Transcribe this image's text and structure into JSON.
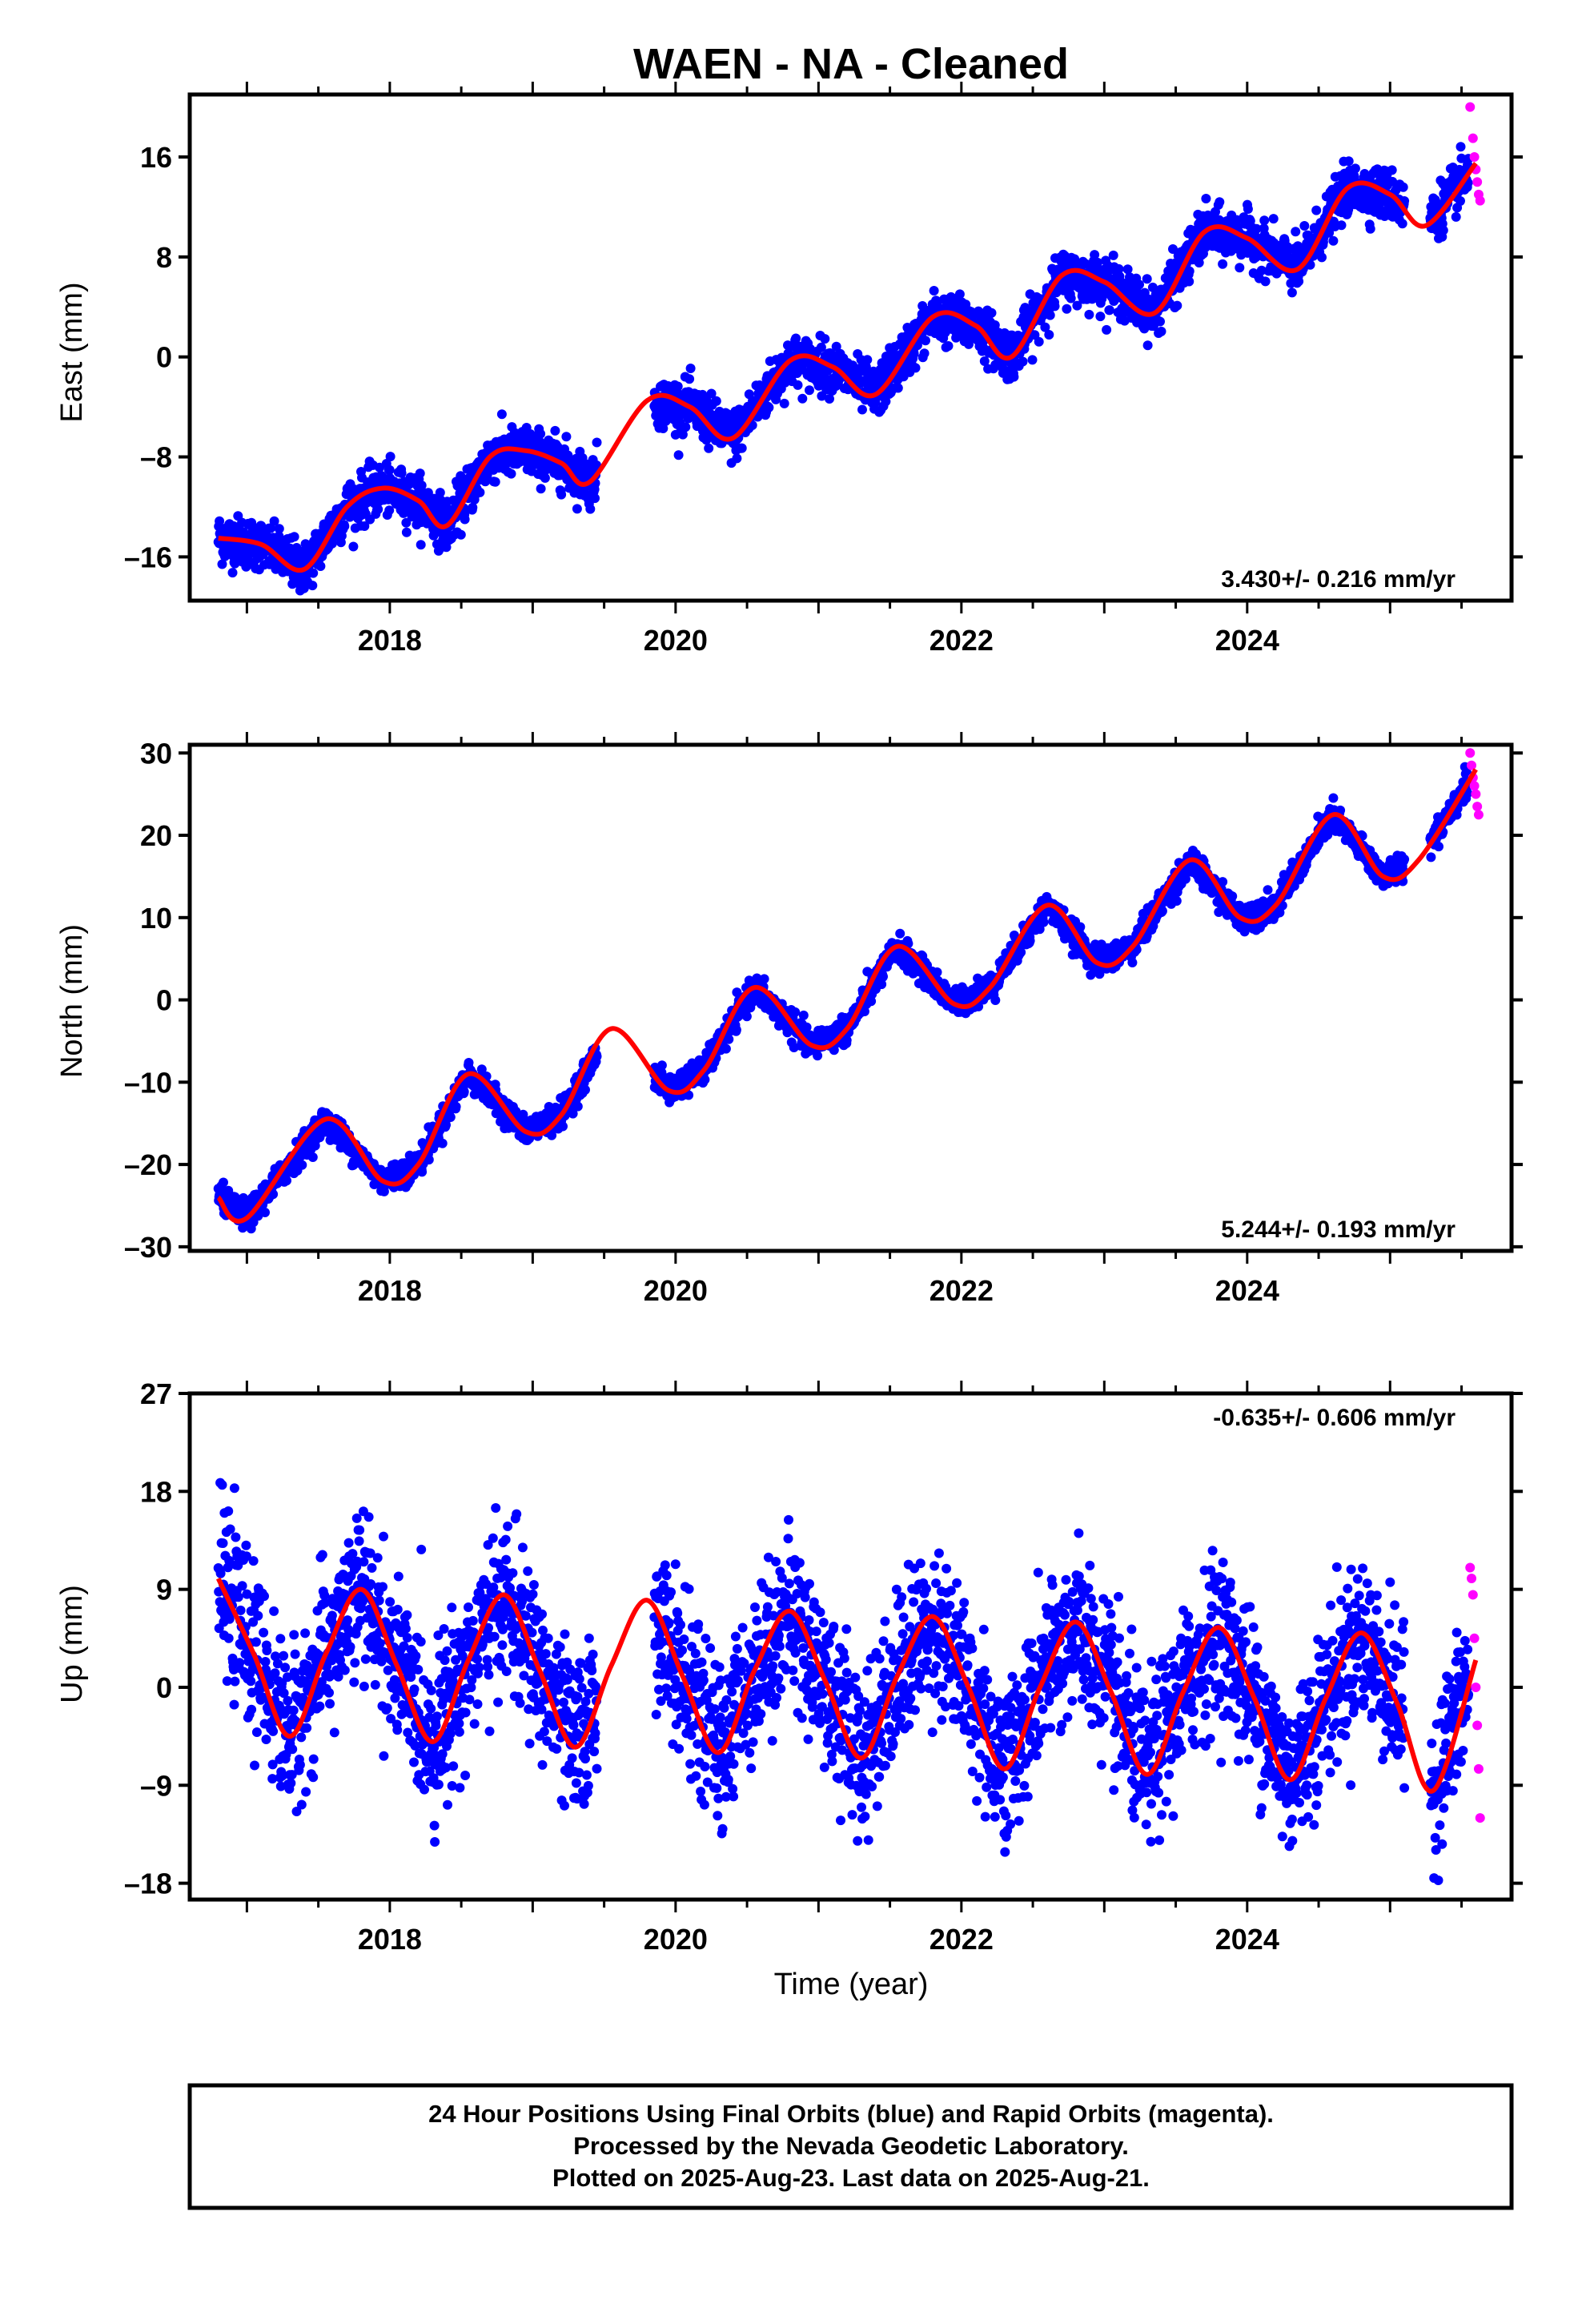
{
  "title": "WAEN  - NA - Cleaned",
  "xlabel": "Time (year)",
  "footer": {
    "line1": "24 Hour Positions Using Final Orbits (blue) and Rapid Orbits (magenta).",
    "line2": "Processed by the Nevada Geodetic Laboratory.",
    "line3": "Plotted on 2025-Aug-23. Last data on 2025-Aug-21."
  },
  "colors": {
    "final": "#0000ff",
    "rapid": "#ff00ff",
    "model": "#ff0000",
    "frame": "#000000"
  },
  "chart_data": [
    {
      "type": "scatter",
      "ylabel": "East (mm)",
      "rate_label": "3.430+/- 0.216 mm/yr",
      "rate_position": "bottom-right",
      "xlim": [
        2016.6,
        2025.85
      ],
      "ylim": [
        -19.5,
        21
      ],
      "yticks": [
        "16",
        "8",
        "0",
        "–8",
        "–16"
      ],
      "ytick_values": [
        16,
        8,
        0,
        -8,
        -16
      ],
      "xticks": [
        "2018",
        "2020",
        "2022",
        "2024"
      ],
      "xtick_values": [
        2018,
        2020,
        2022,
        2024
      ],
      "series": [
        {
          "kind": "final",
          "x_start": 2016.8,
          "x_end": 2025.55,
          "trend_at_x_start": -15.3,
          "slope": 3.43,
          "annual_amp": 2.2,
          "annual_phase": 2.6,
          "scatter": 1.1
        },
        {
          "kind": "rapid",
          "x": [
            2025.56,
            2025.58,
            2025.59,
            2025.6,
            2025.61,
            2025.62,
            2025.63
          ],
          "y": [
            20.0,
            17.5,
            16.0,
            15.0,
            14.0,
            13.0,
            12.5
          ]
        },
        {
          "kind": "model",
          "x": [
            2016.8,
            2017.1,
            2017.4,
            2017.7,
            2017.95,
            2018.2,
            2018.4,
            2018.7,
            2018.95,
            2019.2,
            2019.4,
            2019.8,
            2020.1,
            2020.4,
            2020.8,
            2021.1,
            2021.4,
            2021.8,
            2022.1,
            2022.35,
            2022.7,
            2023.0,
            2023.35,
            2023.7,
            2024.0,
            2024.35,
            2024.7,
            2025.0,
            2025.25,
            2025.6
          ],
          "y": [
            -14.5,
            -15.0,
            -17.0,
            -12.0,
            -10.5,
            -11.5,
            -13.5,
            -8.0,
            -7.5,
            -8.5,
            -10.0,
            -3.5,
            -4.0,
            -6.5,
            -0.3,
            -0.8,
            -3.0,
            3.2,
            2.5,
            0.0,
            6.5,
            6.0,
            3.5,
            10.0,
            9.5,
            7.0,
            13.5,
            13.0,
            10.5,
            15.5
          ]
        }
      ]
    },
    {
      "type": "scatter",
      "ylabel": "North (mm)",
      "rate_label": "5.244+/- 0.193 mm/yr",
      "rate_position": "bottom-right",
      "xlim": [
        2016.6,
        2025.85
      ],
      "ylim": [
        -30.5,
        31
      ],
      "yticks": [
        "30",
        "20",
        "10",
        "0",
        "–10",
        "–20",
        "–30"
      ],
      "ytick_values": [
        30,
        20,
        10,
        0,
        -10,
        -20,
        -30
      ],
      "xticks": [
        "2018",
        "2020",
        "2022",
        "2024"
      ],
      "xtick_values": [
        2018,
        2020,
        2022,
        2024
      ],
      "series": [
        {
          "kind": "final",
          "x_start": 2016.8,
          "x_end": 2025.55,
          "trend_at_x_start": -26.0,
          "slope": 5.244,
          "annual_amp": 3.6,
          "annual_phase": 0.9,
          "scatter": 0.9
        },
        {
          "kind": "rapid",
          "x": [
            2025.56,
            2025.57,
            2025.58,
            2025.59,
            2025.6,
            2025.61,
            2025.62
          ],
          "y": [
            30.0,
            28.5,
            27.0,
            26.0,
            25.0,
            23.5,
            22.5
          ]
        },
        {
          "kind": "model",
          "x": [
            2016.8,
            2017.0,
            2017.55,
            2017.95,
            2018.2,
            2018.55,
            2018.95,
            2019.2,
            2019.55,
            2019.95,
            2020.2,
            2020.55,
            2020.95,
            2021.2,
            2021.55,
            2021.95,
            2022.2,
            2022.6,
            2022.95,
            2023.2,
            2023.6,
            2023.95,
            2024.2,
            2024.6,
            2024.95,
            2025.2,
            2025.6
          ],
          "y": [
            -24.0,
            -26.5,
            -14.5,
            -22.0,
            -20.0,
            -9.0,
            -16.0,
            -14.0,
            -3.5,
            -11.0,
            -8.5,
            1.5,
            -5.5,
            -3.5,
            6.5,
            -0.5,
            1.5,
            11.5,
            4.5,
            6.5,
            17.0,
            10.0,
            11.5,
            22.5,
            15.0,
            17.0,
            28.0
          ]
        }
      ]
    },
    {
      "type": "scatter",
      "ylabel": "Up (mm)",
      "rate_label": "-0.635+/- 0.606 mm/yr",
      "rate_position": "top-right",
      "xlim": [
        2016.6,
        2025.85
      ],
      "ylim": [
        -19.5,
        27
      ],
      "yticks": [
        "27",
        "18",
        "9",
        "0",
        "–9",
        "–18"
      ],
      "ytick_values": [
        27,
        18,
        9,
        0,
        -9,
        -18
      ],
      "xticks": [
        "2018",
        "2020",
        "2022",
        "2024"
      ],
      "xtick_values": [
        2018,
        2020,
        2022,
        2024
      ],
      "series": [
        {
          "kind": "final",
          "x_start": 2016.8,
          "x_end": 2025.55,
          "trend_at_x_start": 2.5,
          "slope": -0.635,
          "annual_amp": 7.0,
          "annual_phase": 0.3,
          "scatter": 3.6
        },
        {
          "kind": "rapid",
          "x": [
            2025.56,
            2025.57,
            2025.58,
            2025.59,
            2025.6,
            2025.61,
            2025.62,
            2025.63
          ],
          "y": [
            11.0,
            10.0,
            8.5,
            4.5,
            0.0,
            -3.5,
            -7.5,
            -12.0
          ]
        },
        {
          "kind": "model",
          "x": [
            2016.8,
            2017.05,
            2017.3,
            2017.55,
            2017.8,
            2018.05,
            2018.3,
            2018.55,
            2018.8,
            2019.05,
            2019.3,
            2019.55,
            2019.8,
            2020.05,
            2020.3,
            2020.55,
            2020.8,
            2021.05,
            2021.3,
            2021.55,
            2021.8,
            2022.05,
            2022.3,
            2022.55,
            2022.8,
            2023.05,
            2023.3,
            2023.55,
            2023.8,
            2024.05,
            2024.3,
            2024.55,
            2024.8,
            2025.05,
            2025.3,
            2025.6
          ],
          "y": [
            10.0,
            3.0,
            -4.5,
            3.0,
            9.0,
            2.0,
            -5.0,
            2.5,
            8.5,
            1.5,
            -5.5,
            2.0,
            8.0,
            1.0,
            -6.0,
            1.5,
            7.0,
            0.5,
            -6.5,
            1.0,
            6.5,
            0.0,
            -7.5,
            0.0,
            6.0,
            -0.5,
            -8.0,
            -0.5,
            5.5,
            -1.0,
            -8.5,
            -1.0,
            5.0,
            -1.5,
            -9.5,
            2.5
          ]
        }
      ]
    }
  ]
}
